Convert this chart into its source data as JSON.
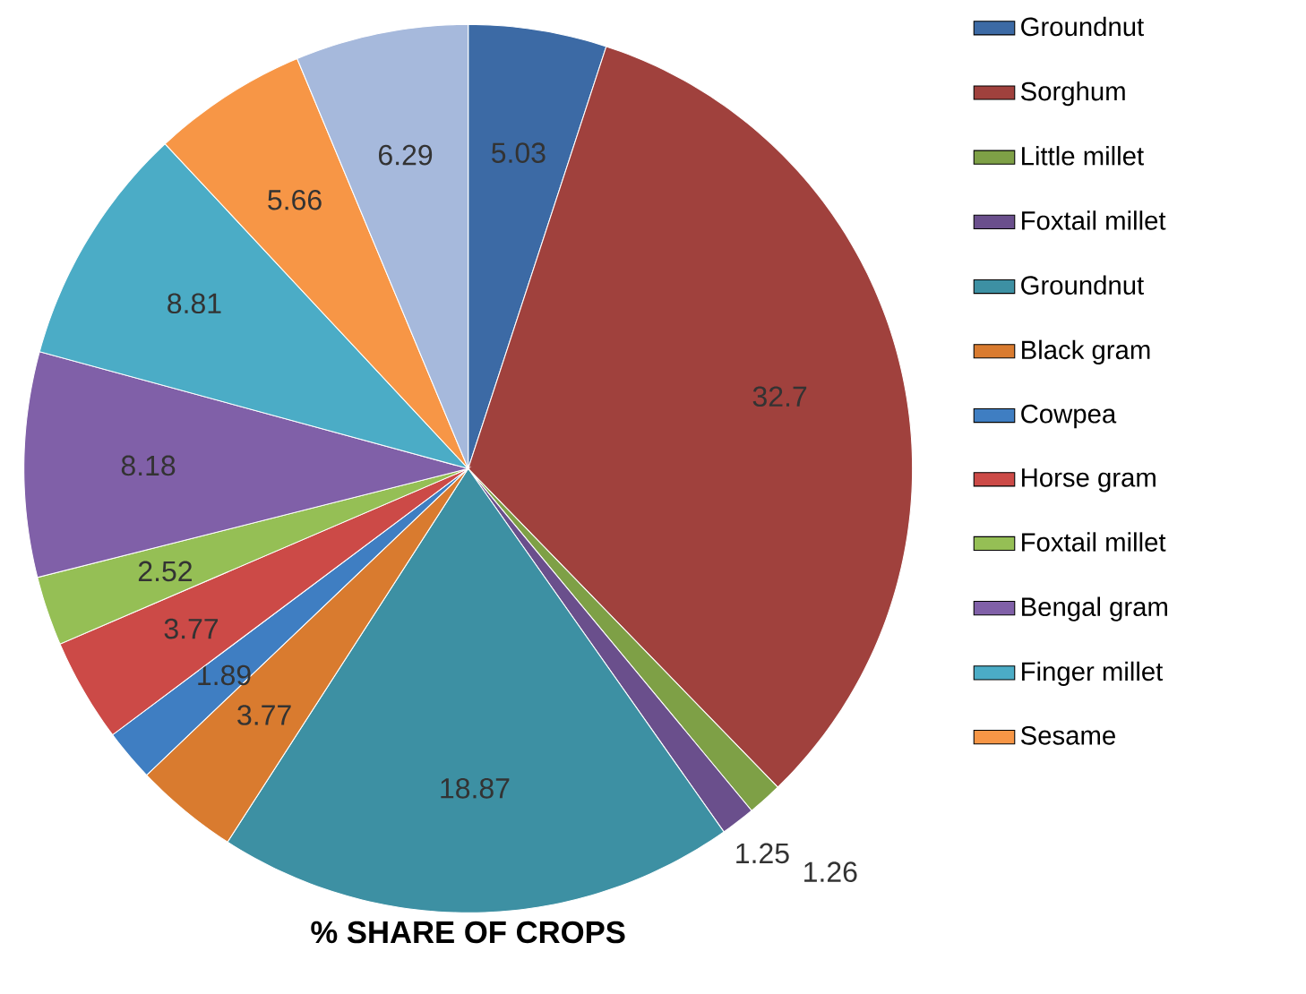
{
  "chart_data": {
    "type": "pie",
    "title": "% SHARE OF CROPS",
    "categories": [
      "Groundnut",
      "Sorghum",
      "Little millet",
      "Foxtail millet",
      "Groundnut",
      "Black gram",
      "Cowpea",
      "Horse gram",
      "Foxtail millet",
      "Bengal gram",
      "Finger millet",
      "Sesame",
      null
    ],
    "values": [
      5.03,
      32.7,
      1.26,
      1.25,
      18.87,
      3.77,
      1.89,
      3.77,
      2.52,
      8.18,
      8.81,
      5.66,
      6.29
    ],
    "colors": [
      "#3c6aa5",
      "#a0413d",
      "#7ea046",
      "#6a4f8c",
      "#3d90a3",
      "#d97b2f",
      "#3f7ec2",
      "#cc4a47",
      "#95bf55",
      "#8060a8",
      "#4bacc6",
      "#f79646",
      "#a6b9dc"
    ],
    "data_labels": true,
    "legend": "right"
  }
}
